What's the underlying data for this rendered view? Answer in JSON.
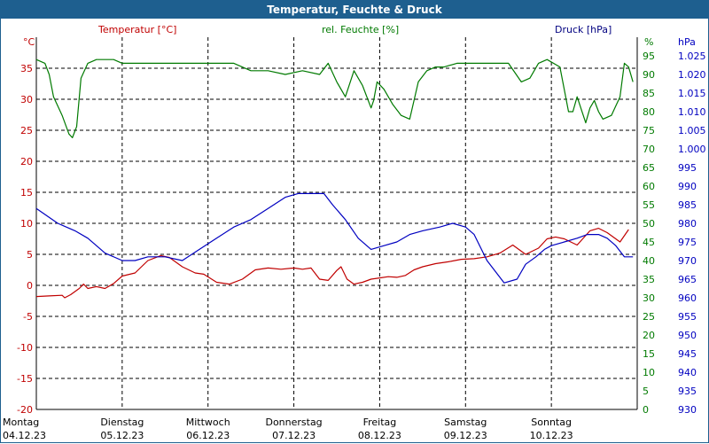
{
  "window": {
    "title": "Temperatur, Feuchte & Druck"
  },
  "legend": {
    "temperature": "Temperatur [°C]",
    "humidity": "rel. Feuchte [%]",
    "pressure": "Druck [hPa]"
  },
  "axes": {
    "left_unit": "°C",
    "right_unit": "%",
    "far_right_unit": "hPa"
  },
  "colors": {
    "title_bg": "#1e5f8f",
    "temperature": "#c00000",
    "humidity": "#007a00",
    "pressure": "#0000c0"
  },
  "chart_data": {
    "type": "line",
    "title": "Temperatur, Feuchte & Druck",
    "x_labels": [
      {
        "day": "Montag",
        "date": "04.12.23"
      },
      {
        "day": "Dienstag",
        "date": "05.12.23"
      },
      {
        "day": "Mittwoch",
        "date": "06.12.23"
      },
      {
        "day": "Donnerstag",
        "date": "07.12.23"
      },
      {
        "day": "Freitag",
        "date": "08.12.23"
      },
      {
        "day": "Samstag",
        "date": "09.12.23"
      },
      {
        "day": "Sonntag",
        "date": "10.12.23"
      }
    ],
    "x_range_days": [
      0,
      7
    ],
    "grid": true,
    "y_left": {
      "label": "Temperatur [°C]",
      "unit": "°C",
      "range": [
        -20,
        40
      ],
      "ticks": [
        -20,
        -15,
        -10,
        -5,
        0,
        5,
        10,
        15,
        20,
        25,
        30,
        35
      ]
    },
    "y_right": {
      "label": "rel. Feuchte [%]",
      "unit": "%",
      "range": [
        0,
        100
      ],
      "ticks": [
        0,
        5,
        10,
        15,
        20,
        25,
        30,
        35,
        40,
        45,
        50,
        55,
        60,
        65,
        70,
        75,
        80,
        85,
        90,
        95
      ]
    },
    "y_far_right": {
      "label": "Druck [hPa]",
      "unit": "hPa",
      "range": [
        930,
        1030
      ],
      "ticks": [
        930,
        935,
        940,
        945,
        950,
        955,
        960,
        965,
        970,
        975,
        980,
        985,
        990,
        995,
        1000,
        1005,
        1010,
        1015,
        1020,
        1025
      ]
    },
    "series": [
      {
        "name": "Temperatur [°C]",
        "axis": "y_left",
        "color": "#c00000",
        "x": [
          0,
          0.15,
          0.3,
          0.33,
          0.4,
          0.5,
          0.55,
          0.6,
          0.7,
          0.8,
          0.9,
          1.0,
          1.15,
          1.3,
          1.45,
          1.55,
          1.7,
          1.85,
          1.95,
          2.1,
          2.25,
          2.4,
          2.55,
          2.7,
          2.85,
          3.0,
          3.1,
          3.2,
          3.3,
          3.4,
          3.5,
          3.55,
          3.62,
          3.7,
          3.8,
          3.9,
          4.0,
          4.1,
          4.2,
          4.3,
          4.4,
          4.5,
          4.65,
          4.8,
          4.95,
          5.1,
          5.25,
          5.4,
          5.55,
          5.7,
          5.85,
          5.95,
          6.05,
          6.15,
          6.3,
          6.45,
          6.55,
          6.65,
          6.8,
          6.9
        ],
        "y": [
          -1.8,
          -1.7,
          -1.6,
          -2.0,
          -1.5,
          -0.5,
          0.2,
          -0.5,
          -0.2,
          -0.5,
          0.3,
          1.5,
          2.0,
          4.0,
          4.8,
          4.5,
          3.0,
          2.0,
          1.8,
          0.5,
          0.2,
          1.0,
          2.5,
          2.8,
          2.6,
          2.8,
          2.6,
          2.8,
          1.0,
          0.8,
          2.4,
          3.0,
          1.0,
          0.2,
          0.5,
          1.0,
          1.2,
          1.4,
          1.3,
          1.6,
          2.5,
          3.0,
          3.5,
          3.8,
          4.2,
          4.3,
          4.6,
          5.2,
          6.5,
          5.0,
          6.0,
          7.5,
          7.8,
          7.5,
          6.5,
          8.8,
          9.2,
          8.5,
          7.0,
          9.0
        ]
      },
      {
        "name": "rel. Feuchte [%]",
        "axis": "y_right",
        "color": "#007a00",
        "x": [
          0,
          0.1,
          0.15,
          0.2,
          0.3,
          0.38,
          0.42,
          0.47,
          0.52,
          0.6,
          0.7,
          0.8,
          0.9,
          1.0,
          1.1,
          1.3,
          1.5,
          1.7,
          1.9,
          2.1,
          2.3,
          2.5,
          2.7,
          2.9,
          3.1,
          3.3,
          3.4,
          3.5,
          3.6,
          3.7,
          3.8,
          3.9,
          3.93,
          3.97,
          4.05,
          4.15,
          4.25,
          4.35,
          4.45,
          4.55,
          4.65,
          4.75,
          4.9,
          5.1,
          5.3,
          5.5,
          5.65,
          5.75,
          5.85,
          5.95,
          6.1,
          6.2,
          6.25,
          6.3,
          6.4,
          6.45,
          6.5,
          6.55,
          6.6,
          6.7,
          6.8,
          6.85,
          6.9,
          6.95
        ],
        "y": [
          94,
          93,
          90,
          84,
          79,
          74,
          73,
          76,
          89,
          93,
          94,
          94,
          94,
          93,
          93,
          93,
          93,
          93,
          93,
          93,
          93,
          91,
          91,
          90,
          91,
          90,
          93,
          88,
          84,
          91,
          87,
          81,
          83,
          88,
          86,
          82,
          79,
          78,
          88,
          91,
          92,
          92,
          93,
          93,
          93,
          93,
          88,
          89,
          93,
          94,
          92,
          80,
          80,
          84,
          77,
          81,
          83,
          80,
          78,
          79,
          84,
          93,
          92,
          88
        ]
      },
      {
        "name": "Druck [hPa]",
        "axis": "y_far_right",
        "color": "#0000c0",
        "x": [
          0,
          0.25,
          0.45,
          0.6,
          0.8,
          1.0,
          1.15,
          1.3,
          1.5,
          1.7,
          1.9,
          2.1,
          2.3,
          2.5,
          2.7,
          2.9,
          3.05,
          3.2,
          3.35,
          3.45,
          3.6,
          3.75,
          3.9,
          4.05,
          4.2,
          4.35,
          4.5,
          4.7,
          4.85,
          5.0,
          5.1,
          5.25,
          5.45,
          5.6,
          5.7,
          5.82,
          5.92,
          6.0,
          6.15,
          6.3,
          6.42,
          6.55,
          6.65,
          6.75,
          6.85,
          6.95
        ],
        "y": [
          984,
          980,
          978,
          976,
          972,
          970,
          970,
          971,
          971,
          970,
          973,
          976,
          979,
          981,
          984,
          987,
          988,
          988,
          988,
          985,
          981,
          976,
          973,
          974,
          975,
          977,
          978,
          979,
          980,
          979,
          977,
          970,
          964,
          965,
          969,
          971,
          973,
          974,
          975,
          976,
          977,
          977,
          976,
          974,
          971,
          971
        ]
      }
    ]
  }
}
